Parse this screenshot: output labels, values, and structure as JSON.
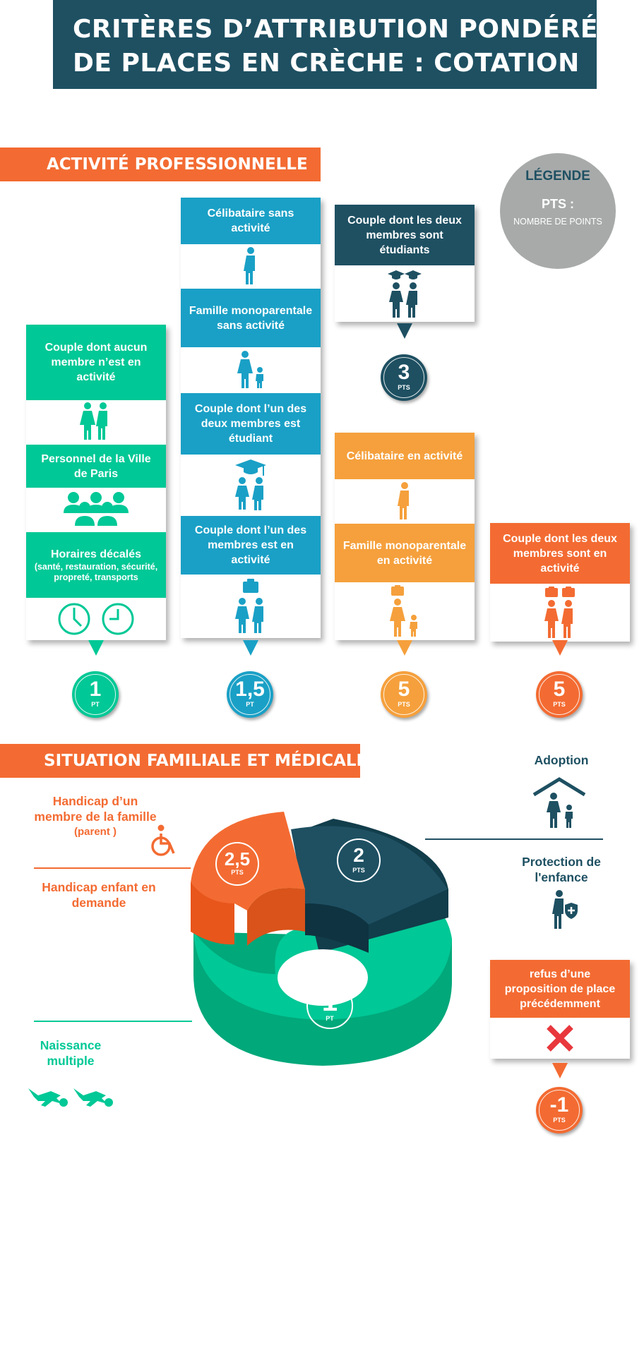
{
  "title": {
    "line1": "CRITÈRES D’ATTRIBUTION PONDÉRÉS",
    "line2": "DE PLACES EN CRÈCHE : COTATION"
  },
  "sections": {
    "activity": "ACTIVITÉ PROFESSIONNELLE",
    "family": "SITUATION FAMILIALE ET MÉDICALE"
  },
  "legend": {
    "title": "LÉGENDE",
    "pts": "PTS :",
    "desc": "NOMBRE DE POINTS"
  },
  "colors": {
    "teal": "#1e5062",
    "green": "#00c896",
    "blue": "#1aa0c6",
    "orange_light": "#f5a03c",
    "orange": "#f36b32",
    "grey": "#a8aaaa",
    "red": "#e8383d"
  },
  "column1": {
    "items": [
      "Couple dont aucun membre n’est en activité",
      "Personnel de la Ville de Paris",
      "Horaires décalés"
    ],
    "note": "(santé, restauration, sécurité, propreté, transports",
    "badge_value": "1",
    "badge_unit": "PT"
  },
  "column2": {
    "items": [
      "Célibataire sans activité",
      "Famille monoparentale sans activité",
      "Couple dont l’un des deux membres est étudiant",
      "Couple dont l’un des membres est en activité"
    ],
    "badge_value": "1,5",
    "badge_unit": "PT"
  },
  "column3_top": {
    "item": "Couple dont les deux membres sont étudiants",
    "badge_value": "3",
    "badge_unit": "PTS"
  },
  "column3": {
    "items": [
      "Célibataire en activité",
      "Famille monoparentale en activité"
    ],
    "badge_value": "5",
    "badge_unit": "PTS"
  },
  "column4": {
    "item": "Couple dont les deux membres sont en activité",
    "badge_value": "5",
    "badge_unit": "PTS"
  },
  "family": {
    "handicap_parent": "Handicap d’un membre de la famille",
    "handicap_parent_note": "(parent )",
    "handicap_child": "Handicap enfant en demande",
    "multiple_birth": "Naissance multiple",
    "adoption": "Adoption",
    "child_protection": "Protection de l'enfance",
    "refusal": "refus d’une proposition de place précédemment",
    "refusal_value": "-1",
    "refusal_unit": "PTS"
  },
  "ring": {
    "slice_orange_value": "2,5",
    "slice_orange_unit": "PTS",
    "slice_teal_value": "2",
    "slice_teal_unit": "PTS",
    "slice_green_value": "1",
    "slice_green_unit": "PT"
  }
}
